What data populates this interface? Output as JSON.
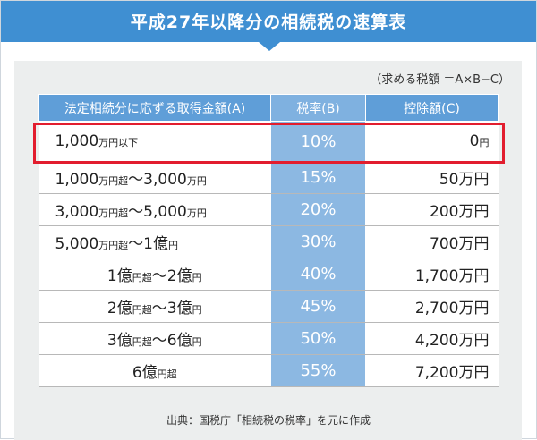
{
  "title": "平成27年以降分の相続税の速算表",
  "formula": "（求める税額 ＝A×B−C）",
  "table": {
    "headers": [
      "法定相続分に応ずる取得金額(A)",
      "税率(B)",
      "控除額(C)"
    ],
    "rows": [
      {
        "amount": [
          {
            "t": "1,000",
            "s": "big"
          },
          {
            "t": "万円以下",
            "s": "small"
          }
        ],
        "rate": "10%",
        "deduction": [
          {
            "t": "0",
            "s": "big"
          },
          {
            "t": "円",
            "s": "small"
          }
        ]
      },
      {
        "amount": [
          {
            "t": "1,000",
            "s": "big"
          },
          {
            "t": "万円超",
            "s": "small"
          },
          {
            "t": "～",
            "s": "big"
          },
          {
            "t": "3,000",
            "s": "big"
          },
          {
            "t": "万円",
            "s": "small"
          }
        ],
        "rate": "15%",
        "deduction": [
          {
            "t": "50",
            "s": "big"
          },
          {
            "t": "万円",
            "s": "big"
          }
        ]
      },
      {
        "amount": [
          {
            "t": "3,000",
            "s": "big"
          },
          {
            "t": "万円超",
            "s": "small"
          },
          {
            "t": "～",
            "s": "big"
          },
          {
            "t": "5,000",
            "s": "big"
          },
          {
            "t": "万円",
            "s": "small"
          }
        ],
        "rate": "20%",
        "deduction": [
          {
            "t": "200",
            "s": "big"
          },
          {
            "t": "万円",
            "s": "big"
          }
        ]
      },
      {
        "amount": [
          {
            "t": "5,000",
            "s": "big"
          },
          {
            "t": "万円超",
            "s": "small"
          },
          {
            "t": "～",
            "s": "big"
          },
          {
            "t": "1億",
            "s": "big"
          },
          {
            "t": "円",
            "s": "small"
          }
        ],
        "rate": "30%",
        "deduction": [
          {
            "t": "700",
            "s": "big"
          },
          {
            "t": "万円",
            "s": "big"
          }
        ]
      },
      {
        "amount": [
          {
            "t": "1億",
            "s": "big"
          },
          {
            "t": "円超",
            "s": "small"
          },
          {
            "t": "～",
            "s": "big"
          },
          {
            "t": "2億",
            "s": "big"
          },
          {
            "t": "円",
            "s": "small"
          }
        ],
        "rate": "40%",
        "deduction": [
          {
            "t": "1,700",
            "s": "big"
          },
          {
            "t": "万円",
            "s": "big"
          }
        ],
        "center": true
      },
      {
        "amount": [
          {
            "t": "2億",
            "s": "big"
          },
          {
            "t": "円超",
            "s": "small"
          },
          {
            "t": "～",
            "s": "big"
          },
          {
            "t": "3億",
            "s": "big"
          },
          {
            "t": "円",
            "s": "small"
          }
        ],
        "rate": "45%",
        "deduction": [
          {
            "t": "2,700",
            "s": "big"
          },
          {
            "t": "万円",
            "s": "big"
          }
        ],
        "center": true
      },
      {
        "amount": [
          {
            "t": "3億",
            "s": "big"
          },
          {
            "t": "円超",
            "s": "small"
          },
          {
            "t": "～",
            "s": "big"
          },
          {
            "t": "6億",
            "s": "big"
          },
          {
            "t": "円",
            "s": "small"
          }
        ],
        "rate": "50%",
        "deduction": [
          {
            "t": "4,200",
            "s": "big"
          },
          {
            "t": "万円",
            "s": "big"
          }
        ],
        "center": true
      },
      {
        "amount": [
          {
            "t": "6億",
            "s": "big"
          },
          {
            "t": "円超",
            "s": "small"
          }
        ],
        "rate": "55%",
        "deduction": [
          {
            "t": "7,200",
            "s": "big"
          },
          {
            "t": "万円",
            "s": "big"
          }
        ],
        "center": true
      }
    ]
  },
  "source": "出典：国税庁「相続税の税率」を元に作成",
  "colors": {
    "header": "#3f8fd2",
    "rate_column": "#8cb8e2",
    "highlight": "#e21d2e"
  }
}
